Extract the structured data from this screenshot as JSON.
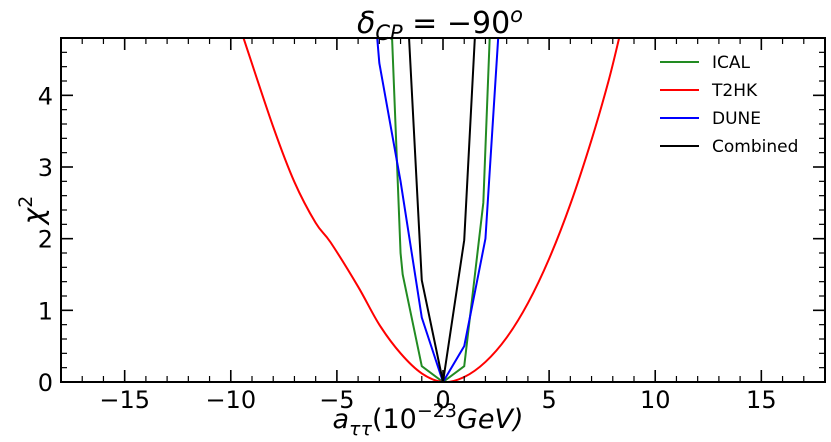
{
  "chart_data": {
    "type": "line",
    "title": {
      "base": "δ",
      "sub": "CP",
      "eq": " = −90",
      "sup": "o"
    },
    "xlabel": {
      "base": "a",
      "sub": "ττ",
      "paren_open": "(10",
      "sup": "−23",
      "unit": "GeV)"
    },
    "ylabel": {
      "base": "χ",
      "sup": "2"
    },
    "xlim": [
      -18,
      18
    ],
    "ylim": [
      0,
      4.8
    ],
    "x_ticks": [
      -15,
      -10,
      -5,
      0,
      5,
      10,
      15
    ],
    "x_tick_labels": [
      "−15",
      "−10",
      "−5",
      "0",
      "5",
      "10",
      "15"
    ],
    "y_ticks": [
      0,
      1,
      2,
      3,
      4
    ],
    "y_tick_labels": [
      "0",
      "1",
      "2",
      "3",
      "4"
    ],
    "grid": false,
    "legend_position": "top-right",
    "series": [
      {
        "name": "ICAL",
        "color": "#228b22",
        "x": [
          -2.4,
          -2.0,
          -1.9,
          -1.0,
          0.0,
          1.0,
          1.9,
          2.2
        ],
        "y": [
          4.8,
          1.8,
          1.5,
          0.22,
          0.0,
          0.22,
          2.5,
          4.8
        ]
      },
      {
        "name": "T2HK",
        "color": "#ff0000",
        "x": [
          -9.4,
          -8.0,
          -7.0,
          -6.0,
          -5.3,
          -4.0,
          -3.0,
          -2.0,
          -1.0,
          0.0,
          1.0,
          2.0,
          3.0,
          4.0,
          5.0,
          6.0,
          7.0,
          7.8,
          8.3
        ],
        "y": [
          4.8,
          3.56,
          2.79,
          2.22,
          1.95,
          1.33,
          0.8,
          0.4,
          0.12,
          0.0,
          0.07,
          0.28,
          0.62,
          1.1,
          1.72,
          2.48,
          3.38,
          4.2,
          4.8
        ],
        "smooth": true
      },
      {
        "name": "DUNE",
        "color": "#0000ff",
        "x": [
          -3.1,
          -3.0,
          -2.0,
          -1.0,
          0.0,
          1.0,
          2.0,
          2.6
        ],
        "y": [
          4.8,
          4.45,
          2.8,
          0.9,
          0.0,
          0.5,
          2.0,
          4.8
        ]
      },
      {
        "name": "Combined",
        "color": "#000000",
        "x": [
          -1.6,
          -1.0,
          0.0,
          1.0,
          1.5
        ],
        "y": [
          4.8,
          1.42,
          0.0,
          1.98,
          4.8
        ]
      }
    ]
  }
}
